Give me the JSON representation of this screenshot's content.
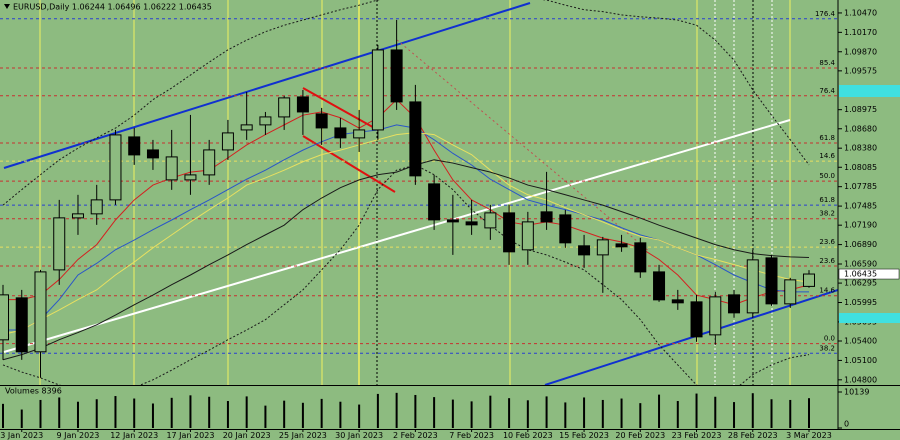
{
  "chart_data": {
    "type": "candlestick",
    "title": "EURUSD,Daily  1.06244 1.06496 1.06222 1.06435",
    "categories": [
      null,
      "3 Jan 2023",
      null,
      null,
      "9 Jan 2023",
      null,
      null,
      "12 Jan 2023",
      null,
      null,
      "17 Jan 2023",
      null,
      null,
      "20 Jan 2023",
      null,
      null,
      "25 Jan 2023",
      null,
      null,
      "30 Jan 2023",
      null,
      null,
      "2 Feb 2023",
      null,
      null,
      "7 Feb 2023",
      null,
      null,
      "10 Feb 2023",
      null,
      null,
      "15 Feb 2023",
      null,
      null,
      "20 Feb 2023",
      null,
      null,
      "23 Feb 2023",
      null,
      null,
      "28 Feb 2023",
      null,
      null,
      "3 Mar 2023"
    ],
    "ohlc": {
      "open": [
        1.05418,
        1.06067,
        1.05233,
        1.06499,
        1.07303,
        1.07365,
        1.07581,
        1.08554,
        1.08353,
        1.0789,
        1.0789,
        1.07967,
        1.08353,
        1.08662,
        1.0874,
        1.08863,
        1.09172,
        1.0891,
        1.08693,
        1.08539,
        1.08662,
        1.09898,
        1.09095,
        1.07828,
        1.07272,
        1.07241,
        1.07148,
        1.0738,
        1.06809,
        1.07396,
        1.07349,
        1.06871,
        1.06731,
        1.06901,
        1.06917,
        1.06468,
        1.06036,
        1.06005,
        1.05495,
        1.06113,
        1.05835,
        1.06685,
        1.05974,
        1.06244
      ],
      "high": [
        1.06268,
        1.0619,
        1.06499,
        1.07581,
        1.07659,
        1.07813,
        1.08662,
        1.08693,
        1.08508,
        1.08662,
        1.08894,
        1.08508,
        1.08817,
        1.09249,
        1.0894,
        1.09188,
        1.0928,
        1.09002,
        1.08848,
        1.08971,
        1.09976,
        1.10362,
        1.09358,
        1.07967,
        1.07659,
        1.07581,
        1.07504,
        1.07504,
        1.07396,
        1.08014,
        1.07427,
        1.0704,
        1.07009,
        1.0704,
        1.06994,
        1.06577,
        1.0619,
        1.06113,
        1.0616,
        1.0619,
        1.06809,
        1.06731,
        1.06376,
        1.06496
      ],
      "low": [
        1.05109,
        1.05109,
        1.04831,
        1.06268,
        1.0704,
        1.07195,
        1.07504,
        1.08122,
        1.08044,
        1.07736,
        1.07659,
        1.07813,
        1.08199,
        1.08508,
        1.08585,
        1.08662,
        1.08585,
        1.08431,
        1.08384,
        1.08322,
        1.08508,
        1.08971,
        1.07813,
        1.07117,
        1.06731,
        1.0704,
        1.06963,
        1.06577,
        1.06577,
        1.07117,
        1.0684,
        1.0653,
        1.06144,
        1.06778,
        1.06376,
        1.06005,
        1.05881,
        1.05387,
        1.05341,
        1.05758,
        1.05758,
        1.05943,
        1.05912,
        1.06222
      ],
      "close": [
        1.06113,
        1.05233,
        1.06468,
        1.07303,
        1.07365,
        1.07581,
        1.08585,
        1.08276,
        1.0823,
        1.08245,
        1.07967,
        1.08353,
        1.08616,
        1.0874,
        1.08863,
        1.09157,
        1.0894,
        1.08693,
        1.08539,
        1.08662,
        1.09898,
        1.09095,
        1.07952,
        1.07272,
        1.07241,
        1.07195,
        1.0738,
        1.06778,
        1.07241,
        1.07241,
        1.06917,
        1.06731,
        1.06963,
        1.06855,
        1.06468,
        1.06036,
        1.0599,
        1.05464,
        1.06082,
        1.05835,
        1.06654,
        1.05974,
        1.06345,
        1.06435
      ],
      "bull_color": "#8dbb80",
      "bear_color": "#000000"
    },
    "ylim": [
      1.0472,
      1.1067
    ],
    "yticks": [
      {
        "value": 1.1047,
        "label": "1.10470"
      },
      {
        "value": 1.1017,
        "label": "1.10170"
      },
      {
        "value": 1.0987,
        "label": "1.09870"
      },
      1.09575,
      1.08975,
      {
        "value": 1.0868,
        "label": "1.08680"
      },
      {
        "value": 1.0838,
        "label": "1.08380"
      },
      1.08085,
      1.07785,
      1.07485,
      {
        "value": 1.0719,
        "label": "1.07190"
      },
      {
        "value": 1.0689,
        "label": "1.06890"
      },
      {
        "value": 1.0659,
        "label": "1.06590"
      },
      1.06295,
      1.05995,
      1.05695,
      {
        "value": 1.054,
        "label": "1.05400"
      },
      {
        "value": 1.051,
        "label": "1.05100"
      },
      {
        "value": 1.048,
        "label": "1.04800"
      }
    ],
    "indicators": [
      {
        "color": "#d42020",
        "style": "solid",
        "values": [
          1.0604,
          1.0604,
          1.0611,
          1.0635,
          1.0666,
          1.0689,
          1.0727,
          1.0758,
          1.0781,
          1.0792,
          1.0801,
          1.0804,
          1.0823,
          1.0843,
          1.0859,
          1.0874,
          1.0889,
          1.0894,
          1.0885,
          1.0869,
          1.0885,
          1.0913,
          1.0885,
          1.0835,
          1.0789,
          1.0758,
          1.0743,
          1.0724,
          1.0719,
          1.0724,
          1.0719,
          1.0709,
          1.0699,
          1.0693,
          1.0684,
          1.0666,
          1.0642,
          1.0611,
          1.0604,
          1.0596,
          1.0607,
          1.0616,
          1.0619,
          1.0627
        ]
      },
      {
        "color": "#2a56c8",
        "style": "solid",
        "values": [
          1.0557,
          1.0557,
          1.0573,
          1.0604,
          1.0642,
          1.066,
          1.0681,
          1.0696,
          1.0712,
          1.0727,
          1.0743,
          1.0758,
          1.0774,
          1.079,
          1.0804,
          1.082,
          1.0835,
          1.0848,
          1.0859,
          1.0863,
          1.0866,
          1.0874,
          1.0869,
          1.0851,
          1.083,
          1.0812,
          1.079,
          1.0774,
          1.0758,
          1.075,
          1.0743,
          1.0735,
          1.0727,
          1.0715,
          1.0704,
          1.0696,
          1.0684,
          1.0673,
          1.0658,
          1.0642,
          1.063,
          1.0619,
          1.0616,
          1.0616
        ]
      },
      {
        "color": "#e8e060",
        "style": "solid",
        "values": [
          1.055,
          1.0557,
          1.0573,
          1.0588,
          1.0604,
          1.0619,
          1.0642,
          1.0662,
          1.0684,
          1.0704,
          1.0724,
          1.0743,
          1.0761,
          1.0781,
          1.0792,
          1.0804,
          1.0817,
          1.0828,
          1.0835,
          1.0843,
          1.0851,
          1.0859,
          1.0862,
          1.0859,
          1.0843,
          1.0828,
          1.0804,
          1.0781,
          1.0766,
          1.0758,
          1.0746,
          1.0735,
          1.0724,
          1.0712,
          1.0702,
          1.0696,
          1.0684,
          1.0673,
          1.0666,
          1.0658,
          1.065,
          1.0642,
          1.0635,
          1.0631
        ]
      },
      {
        "color": "#1a1a1a",
        "style": "solid",
        "values": [
          1.0511,
          1.0519,
          1.0529,
          1.0542,
          1.0553,
          1.0565,
          1.058,
          1.0596,
          1.0611,
          1.0627,
          1.0642,
          1.0658,
          1.0673,
          1.0689,
          1.0704,
          1.0719,
          1.0743,
          1.0761,
          1.0777,
          1.0789,
          1.0797,
          1.0801,
          1.0812,
          1.082,
          1.0815,
          1.0808,
          1.0801,
          1.0792,
          1.0781,
          1.0774,
          1.0766,
          1.0758,
          1.075,
          1.074,
          1.073,
          1.0719,
          1.0709,
          1.0699,
          1.0689,
          1.0681,
          1.0675,
          1.0672,
          1.067,
          1.0669
        ]
      },
      {
        "color": "#1a1a1a",
        "style": "dotted",
        "values": [
          1.075,
          1.0774,
          1.0797,
          1.082,
          1.0838,
          1.0854,
          1.0869,
          1.0889,
          1.0913,
          1.0931,
          1.0951,
          1.0971,
          1.099,
          1.1005,
          1.1018,
          1.1028,
          1.1036,
          1.1044,
          1.1052,
          1.1059,
          1.1067,
          1.1075,
          1.1083,
          1.1086,
          1.1086,
          1.1083,
          1.1079,
          1.1075,
          1.107,
          1.1067,
          1.1059,
          1.1052,
          1.1049,
          1.1044,
          1.1041,
          1.1039,
          1.1036,
          1.1028,
          1.1005,
          1.0974,
          1.0928,
          1.0889,
          1.0851,
          1.0812
        ]
      },
      {
        "color": "#1a1a1a",
        "style": "dotted",
        "values": [
          1.0503,
          1.0492,
          1.0483,
          1.0472,
          1.0464,
          1.0457,
          1.0461,
          1.0468,
          1.048,
          1.0495,
          1.0511,
          1.0526,
          1.0542,
          1.0557,
          1.0573,
          1.0596,
          1.0619,
          1.065,
          1.0681,
          1.0719,
          1.0774,
          1.0804,
          1.0812,
          1.0797,
          1.0774,
          1.0743,
          1.0719,
          1.0696,
          1.0681,
          1.0673,
          1.0662,
          1.065,
          1.0627,
          1.0604,
          1.0573,
          1.0534,
          1.0503,
          1.0472,
          1.0457,
          1.0464,
          1.0488,
          1.0503,
          1.0514,
          1.0519
        ]
      }
    ],
    "levels": [
      {
        "label": "176.4",
        "value": 1.1038,
        "color": "#2a40d0"
      },
      {
        "label": "85.4",
        "value": 1.0962,
        "color": "#c83030"
      },
      {
        "label": "76.4",
        "value": 1.0919,
        "color": "#c83030"
      },
      {
        "label": "61.8",
        "value": 1.0846,
        "color": "#c83030"
      },
      {
        "label": "14.6",
        "value": 1.0818,
        "color": "#e8e060"
      },
      {
        "label": "50.0",
        "value": 1.0787,
        "color": "#c83030"
      },
      {
        "label": "61.8",
        "value": 1.075,
        "color": "#2a40d0"
      },
      {
        "label": "38.2",
        "value": 1.0729,
        "color": "#c83030"
      },
      {
        "label": "23.6",
        "value": 1.0685,
        "color": "#e8e060"
      },
      {
        "label": "23.6",
        "value": 1.0656,
        "color": "#c83030"
      },
      {
        "label": "14.6",
        "value": 1.061,
        "color": "#c83030"
      },
      {
        "label": "0.0",
        "value": 1.0536,
        "color": "#c83030"
      },
      {
        "label": "38.2",
        "value": 1.0521,
        "color": "#2a40d0"
      }
    ],
    "volume": {
      "label": "Volumes 8396",
      "color": "#000000",
      "values": [
        6800,
        5200,
        7900,
        8600,
        7400,
        8100,
        9000,
        8300,
        6900,
        8500,
        9200,
        8800,
        7600,
        8900,
        6300,
        7700,
        7100,
        8200,
        7400,
        6600,
        9600,
        9900,
        9300,
        8700,
        8000,
        7500,
        9100,
        8400,
        7800,
        8900,
        7200,
        8600,
        7900,
        8300,
        7000,
        9400,
        7600,
        9700,
        8800,
        7300,
        9800,
        8100,
        7900,
        8396
      ],
      "ylim": [
        0,
        10139
      ],
      "yticks": [
        10139,
        0
      ]
    }
  }
}
